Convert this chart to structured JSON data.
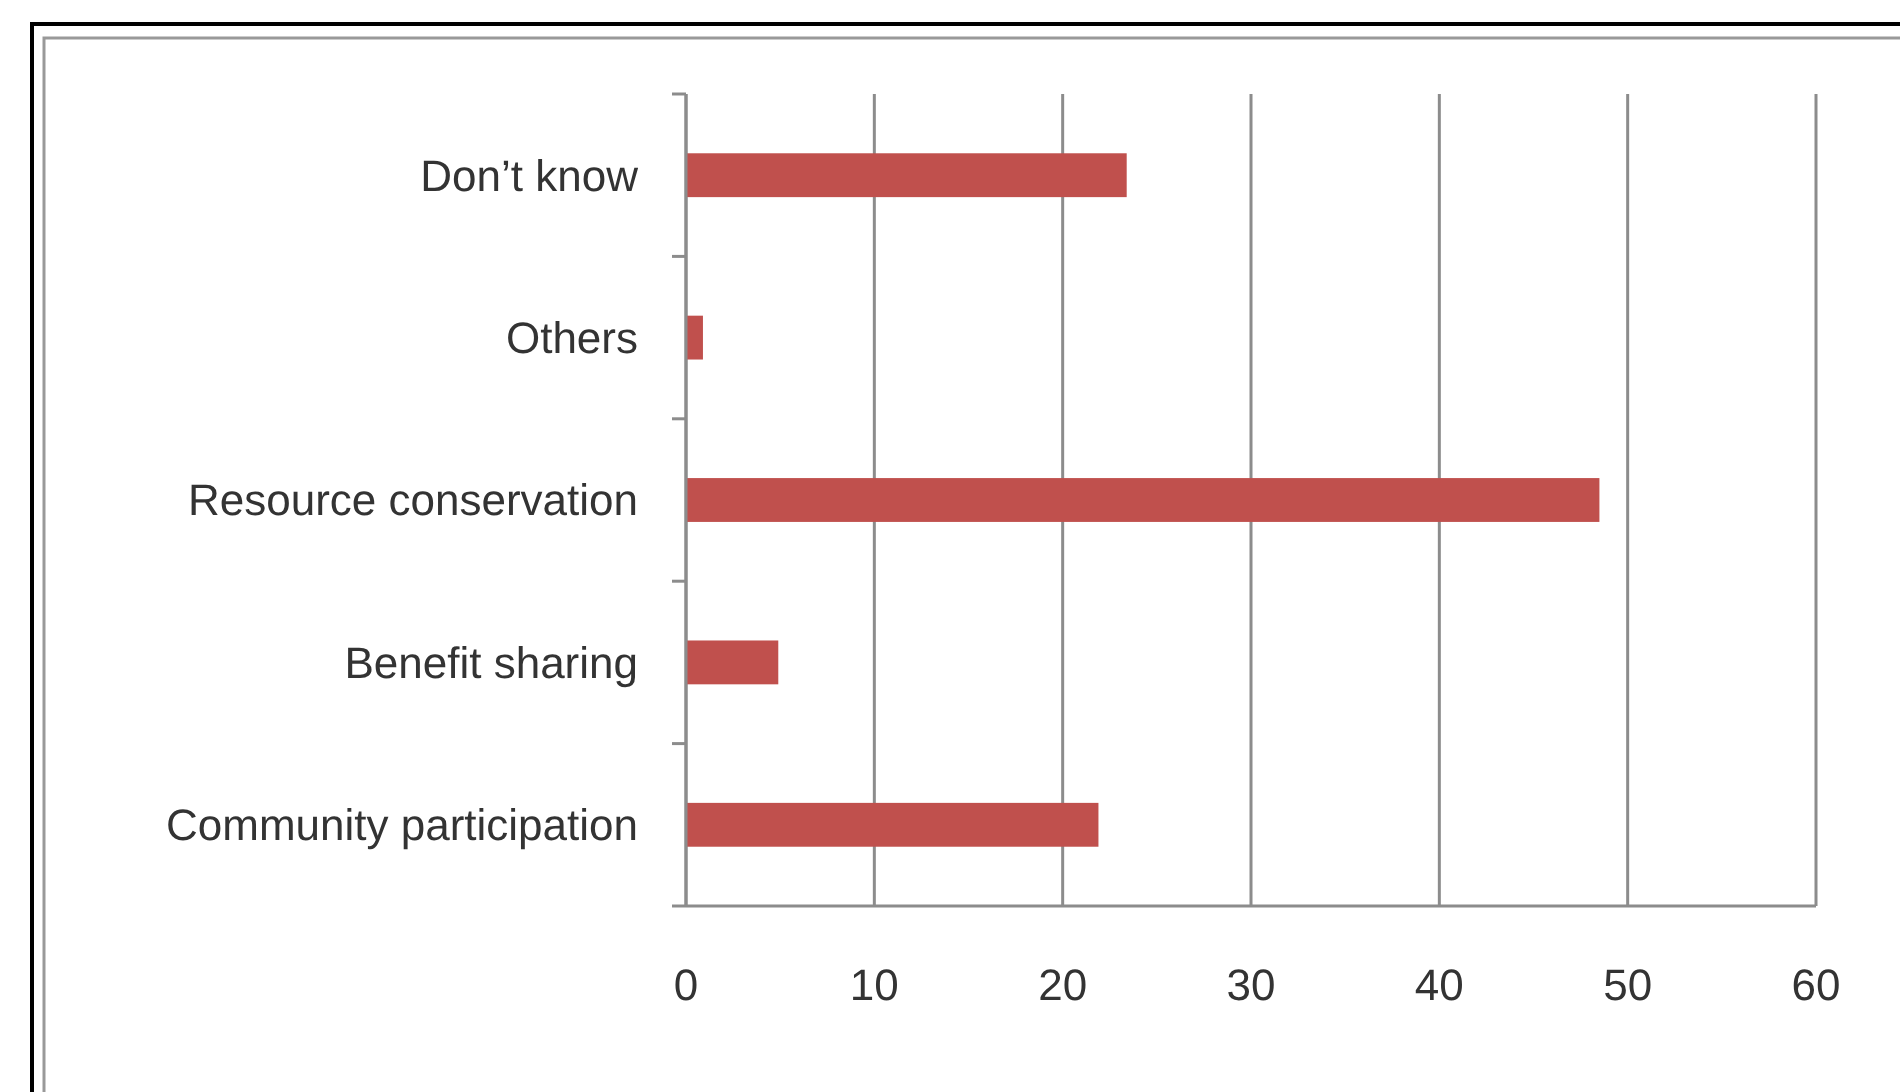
{
  "chart_data": {
    "type": "bar",
    "orientation": "horizontal",
    "categories": [
      "Don’t know",
      "Others",
      "Resource conservation",
      "Benefit sharing",
      "Community participation"
    ],
    "values": [
      23.4,
      0.9,
      48.5,
      4.9,
      21.9
    ],
    "color": "#c0504d",
    "xlim": [
      0,
      60
    ],
    "xticks": [
      0,
      10,
      20,
      30,
      40,
      50,
      60
    ],
    "grid": "x"
  }
}
